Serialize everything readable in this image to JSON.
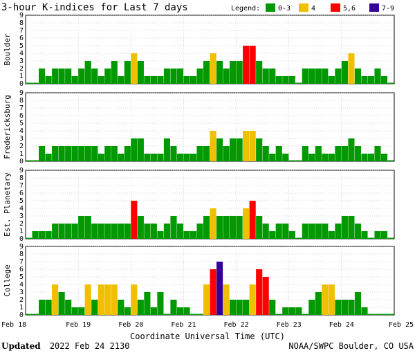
{
  "chart_data": {
    "type": "bar",
    "title": "3-hour K-indices for Last 7 days",
    "legend": {
      "label": "Legend:",
      "entries": [
        {
          "name": "0-3",
          "color": "#009900"
        },
        {
          "name": "4",
          "color": "#f0c000"
        },
        {
          "name": "5,6",
          "color": "#ff0000"
        },
        {
          "name": "7-9",
          "color": "#330099"
        }
      ]
    },
    "xlabel": "Coordinate Universal Time (UTC)",
    "x_ticks": [
      "Feb 18",
      "Feb 19",
      "Feb 20",
      "Feb 21",
      "Feb 22",
      "Feb 23",
      "Feb 24",
      "Feb 25"
    ],
    "ylim": [
      0,
      9
    ],
    "y_ticks": [
      "0",
      "1",
      "2",
      "3",
      "4",
      "5",
      "6",
      "7",
      "8",
      "9"
    ],
    "bars_per_day": 8,
    "panels": [
      {
        "name": "Boulder",
        "values": [
          0,
          0,
          2,
          1,
          2,
          2,
          2,
          1,
          2,
          3,
          2,
          1,
          2,
          3,
          1,
          3,
          4,
          3,
          1,
          1,
          1,
          2,
          2,
          2,
          1,
          1,
          2,
          3,
          4,
          3,
          2,
          3,
          3,
          5,
          5,
          3,
          2,
          2,
          1,
          1,
          1,
          0,
          2,
          2,
          2,
          2,
          1,
          2,
          3,
          4,
          2,
          1,
          1,
          2,
          1,
          0
        ]
      },
      {
        "name": "Fredericksburg",
        "values": [
          0,
          0,
          2,
          1,
          2,
          2,
          2,
          2,
          2,
          2,
          2,
          1,
          2,
          2,
          1,
          2,
          3,
          3,
          1,
          1,
          1,
          3,
          2,
          1,
          1,
          1,
          2,
          2,
          4,
          3,
          2,
          3,
          3,
          4,
          4,
          3,
          2,
          1,
          2,
          1,
          0,
          0,
          2,
          1,
          2,
          1,
          1,
          2,
          2,
          3,
          2,
          1,
          1,
          2,
          1,
          0
        ]
      },
      {
        "name": "Est. Planetary",
        "values": [
          0,
          1,
          1,
          1,
          2,
          2,
          2,
          2,
          3,
          3,
          2,
          2,
          2,
          2,
          2,
          2,
          5,
          3,
          2,
          2,
          1,
          2,
          3,
          2,
          1,
          1,
          2,
          3,
          4,
          3,
          3,
          3,
          3,
          4,
          5,
          3,
          2,
          1,
          2,
          2,
          1,
          0,
          2,
          2,
          2,
          2,
          1,
          2,
          3,
          3,
          2,
          1,
          0,
          1,
          1,
          0
        ]
      },
      {
        "name": "College",
        "values": [
          0,
          0,
          2,
          2,
          4,
          3,
          2,
          1,
          1,
          4,
          2,
          4,
          4,
          4,
          2,
          1,
          4,
          2,
          3,
          1,
          3,
          0,
          2,
          1,
          1,
          0,
          0,
          4,
          6,
          7,
          4,
          2,
          2,
          2,
          4,
          6,
          5,
          2,
          0,
          1,
          1,
          1,
          0,
          2,
          3,
          4,
          4,
          2,
          2,
          2,
          3,
          1,
          0,
          0,
          0,
          0
        ]
      }
    ]
  },
  "footer": {
    "updated_label": "Updated",
    "updated_value": "2022 Feb 24 2130",
    "credit": "NOAA/SWPC Boulder, CO USA"
  }
}
